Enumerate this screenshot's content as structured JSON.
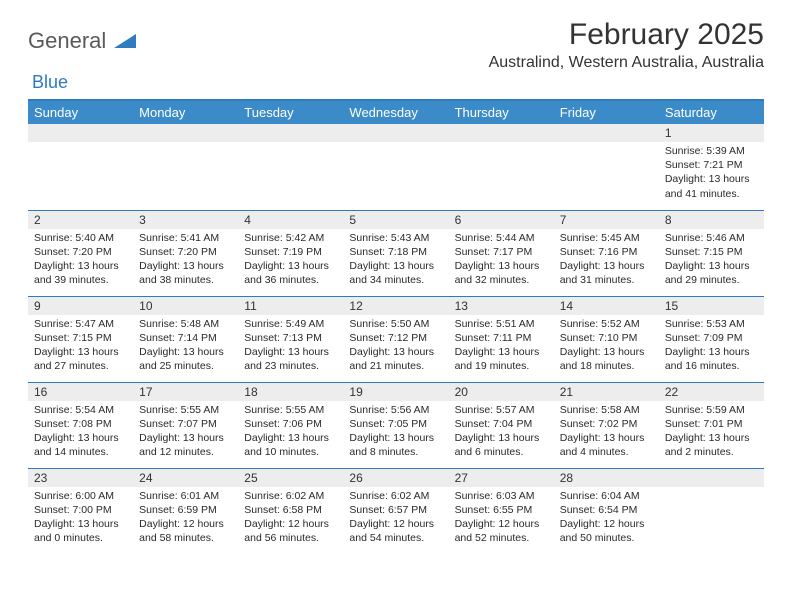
{
  "logo": {
    "text1": "General",
    "text2": "Blue"
  },
  "title": "February 2025",
  "location": "Australind, Western Australia, Australia",
  "colors": {
    "header_bg": "#3b8bc9",
    "accent": "#2f7bbf",
    "daynum_bg": "#ededed",
    "text": "#2a2a2a"
  },
  "day_headers": [
    "Sunday",
    "Monday",
    "Tuesday",
    "Wednesday",
    "Thursday",
    "Friday",
    "Saturday"
  ],
  "weeks": [
    [
      {
        "n": "",
        "sr": "",
        "ss": "",
        "dl": ""
      },
      {
        "n": "",
        "sr": "",
        "ss": "",
        "dl": ""
      },
      {
        "n": "",
        "sr": "",
        "ss": "",
        "dl": ""
      },
      {
        "n": "",
        "sr": "",
        "ss": "",
        "dl": ""
      },
      {
        "n": "",
        "sr": "",
        "ss": "",
        "dl": ""
      },
      {
        "n": "",
        "sr": "",
        "ss": "",
        "dl": ""
      },
      {
        "n": "1",
        "sr": "Sunrise: 5:39 AM",
        "ss": "Sunset: 7:21 PM",
        "dl": "Daylight: 13 hours and 41 minutes."
      }
    ],
    [
      {
        "n": "2",
        "sr": "Sunrise: 5:40 AM",
        "ss": "Sunset: 7:20 PM",
        "dl": "Daylight: 13 hours and 39 minutes."
      },
      {
        "n": "3",
        "sr": "Sunrise: 5:41 AM",
        "ss": "Sunset: 7:20 PM",
        "dl": "Daylight: 13 hours and 38 minutes."
      },
      {
        "n": "4",
        "sr": "Sunrise: 5:42 AM",
        "ss": "Sunset: 7:19 PM",
        "dl": "Daylight: 13 hours and 36 minutes."
      },
      {
        "n": "5",
        "sr": "Sunrise: 5:43 AM",
        "ss": "Sunset: 7:18 PM",
        "dl": "Daylight: 13 hours and 34 minutes."
      },
      {
        "n": "6",
        "sr": "Sunrise: 5:44 AM",
        "ss": "Sunset: 7:17 PM",
        "dl": "Daylight: 13 hours and 32 minutes."
      },
      {
        "n": "7",
        "sr": "Sunrise: 5:45 AM",
        "ss": "Sunset: 7:16 PM",
        "dl": "Daylight: 13 hours and 31 minutes."
      },
      {
        "n": "8",
        "sr": "Sunrise: 5:46 AM",
        "ss": "Sunset: 7:15 PM",
        "dl": "Daylight: 13 hours and 29 minutes."
      }
    ],
    [
      {
        "n": "9",
        "sr": "Sunrise: 5:47 AM",
        "ss": "Sunset: 7:15 PM",
        "dl": "Daylight: 13 hours and 27 minutes."
      },
      {
        "n": "10",
        "sr": "Sunrise: 5:48 AM",
        "ss": "Sunset: 7:14 PM",
        "dl": "Daylight: 13 hours and 25 minutes."
      },
      {
        "n": "11",
        "sr": "Sunrise: 5:49 AM",
        "ss": "Sunset: 7:13 PM",
        "dl": "Daylight: 13 hours and 23 minutes."
      },
      {
        "n": "12",
        "sr": "Sunrise: 5:50 AM",
        "ss": "Sunset: 7:12 PM",
        "dl": "Daylight: 13 hours and 21 minutes."
      },
      {
        "n": "13",
        "sr": "Sunrise: 5:51 AM",
        "ss": "Sunset: 7:11 PM",
        "dl": "Daylight: 13 hours and 19 minutes."
      },
      {
        "n": "14",
        "sr": "Sunrise: 5:52 AM",
        "ss": "Sunset: 7:10 PM",
        "dl": "Daylight: 13 hours and 18 minutes."
      },
      {
        "n": "15",
        "sr": "Sunrise: 5:53 AM",
        "ss": "Sunset: 7:09 PM",
        "dl": "Daylight: 13 hours and 16 minutes."
      }
    ],
    [
      {
        "n": "16",
        "sr": "Sunrise: 5:54 AM",
        "ss": "Sunset: 7:08 PM",
        "dl": "Daylight: 13 hours and 14 minutes."
      },
      {
        "n": "17",
        "sr": "Sunrise: 5:55 AM",
        "ss": "Sunset: 7:07 PM",
        "dl": "Daylight: 13 hours and 12 minutes."
      },
      {
        "n": "18",
        "sr": "Sunrise: 5:55 AM",
        "ss": "Sunset: 7:06 PM",
        "dl": "Daylight: 13 hours and 10 minutes."
      },
      {
        "n": "19",
        "sr": "Sunrise: 5:56 AM",
        "ss": "Sunset: 7:05 PM",
        "dl": "Daylight: 13 hours and 8 minutes."
      },
      {
        "n": "20",
        "sr": "Sunrise: 5:57 AM",
        "ss": "Sunset: 7:04 PM",
        "dl": "Daylight: 13 hours and 6 minutes."
      },
      {
        "n": "21",
        "sr": "Sunrise: 5:58 AM",
        "ss": "Sunset: 7:02 PM",
        "dl": "Daylight: 13 hours and 4 minutes."
      },
      {
        "n": "22",
        "sr": "Sunrise: 5:59 AM",
        "ss": "Sunset: 7:01 PM",
        "dl": "Daylight: 13 hours and 2 minutes."
      }
    ],
    [
      {
        "n": "23",
        "sr": "Sunrise: 6:00 AM",
        "ss": "Sunset: 7:00 PM",
        "dl": "Daylight: 13 hours and 0 minutes."
      },
      {
        "n": "24",
        "sr": "Sunrise: 6:01 AM",
        "ss": "Sunset: 6:59 PM",
        "dl": "Daylight: 12 hours and 58 minutes."
      },
      {
        "n": "25",
        "sr": "Sunrise: 6:02 AM",
        "ss": "Sunset: 6:58 PM",
        "dl": "Daylight: 12 hours and 56 minutes."
      },
      {
        "n": "26",
        "sr": "Sunrise: 6:02 AM",
        "ss": "Sunset: 6:57 PM",
        "dl": "Daylight: 12 hours and 54 minutes."
      },
      {
        "n": "27",
        "sr": "Sunrise: 6:03 AM",
        "ss": "Sunset: 6:55 PM",
        "dl": "Daylight: 12 hours and 52 minutes."
      },
      {
        "n": "28",
        "sr": "Sunrise: 6:04 AM",
        "ss": "Sunset: 6:54 PM",
        "dl": "Daylight: 12 hours and 50 minutes."
      },
      {
        "n": "",
        "sr": "",
        "ss": "",
        "dl": ""
      }
    ]
  ]
}
